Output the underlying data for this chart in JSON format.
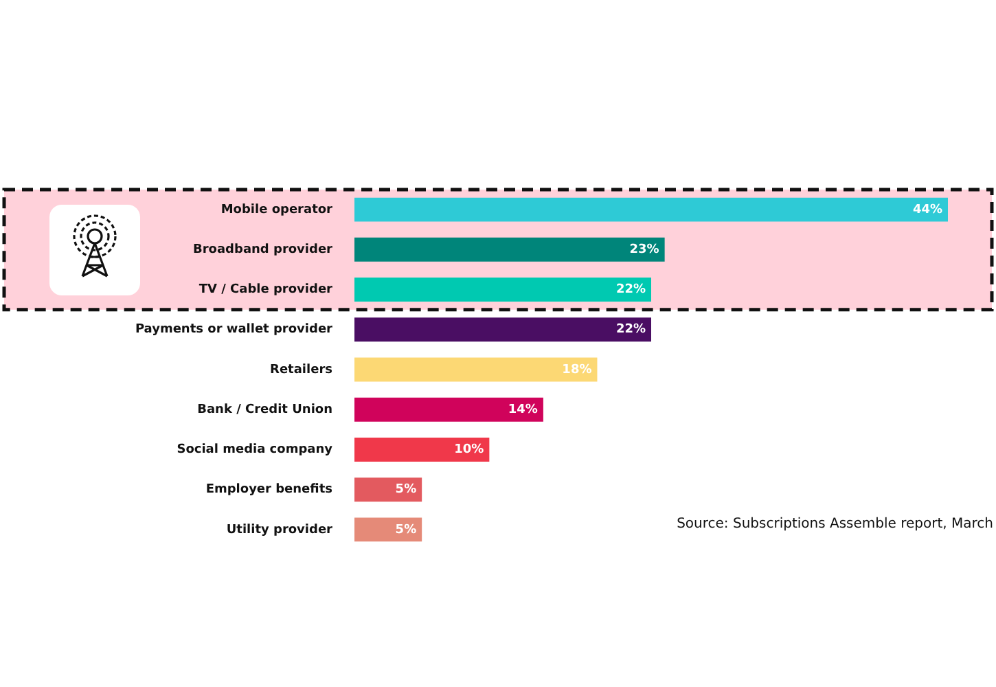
{
  "chart_data": {
    "type": "bar",
    "orientation": "horizontal",
    "categories": [
      "Mobile operator",
      "Broadband provider",
      "TV / Cable provider",
      "Payments or wallet provider",
      "Retailers",
      "Bank / Credit Union",
      "Social media company",
      "Employer benefits",
      "Utility provider"
    ],
    "values": [
      44,
      23,
      22,
      22,
      18,
      14,
      10,
      5,
      5
    ],
    "colors": [
      "#2ecad6",
      "#00857a",
      "#00c9b1",
      "#4a0e63",
      "#fcd874",
      "#d0035b",
      "#f0384a",
      "#e35a5f",
      "#e58a78"
    ],
    "value_labels": [
      "44%",
      "23%",
      "22%",
      "22%",
      "18%",
      "14%",
      "10%",
      "5%",
      "5%"
    ],
    "xlim": [
      0,
      44
    ],
    "tick_labels": "y",
    "bands": [
      {
        "axis": "y",
        "from": "Mobile operator",
        "to": "TV / Cable provider",
        "color": "#ffd1da"
      }
    ],
    "annotations": [
      "Source: Subscriptions Assemble report, March"
    ]
  }
}
